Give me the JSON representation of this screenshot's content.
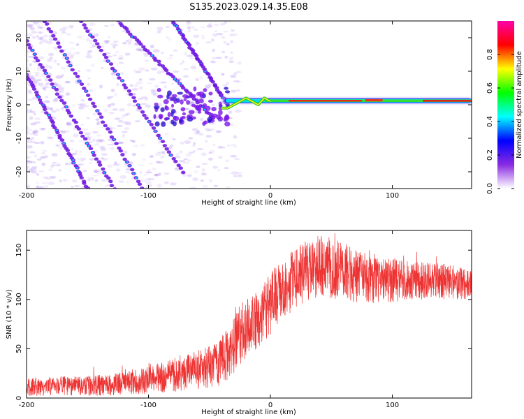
{
  "title": "S135.2023.029.14.35.E08",
  "chart_data": [
    {
      "type": "heatmap",
      "xlabel": "Height of straight line (km)",
      "ylabel": "Frequency (Hz)",
      "xlim": [
        -200,
        165
      ],
      "ylim": [
        -25,
        25
      ],
      "x_ticks": [
        "-200",
        "-100",
        "0",
        "100"
      ],
      "x_tick_values": [
        -200,
        -100,
        0,
        100
      ],
      "y_ticks": [
        "20",
        "10",
        "0",
        "-10",
        "-20"
      ],
      "y_tick_values": [
        20,
        10,
        0,
        -10,
        -20
      ],
      "colorbar": {
        "label": "Normalized spectral amplitude",
        "ticks": [
          "0.0",
          "0.2",
          "0.4",
          "0.6",
          "0.8"
        ],
        "tick_values": [
          0.0,
          0.2,
          0.4,
          0.6,
          0.8
        ],
        "range": [
          0,
          1
        ],
        "colormap": [
          "#ffffff",
          "#8a2be2",
          "#0000ff",
          "#00ffff",
          "#00ff00",
          "#ffff00",
          "#ff0000",
          "#ff00aa"
        ]
      },
      "features": {
        "diagonal_streaks": [
          {
            "x_start": -200,
            "f_start": 9,
            "x_end": -150,
            "f_end": -25
          },
          {
            "x_start": -200,
            "f_start": 19,
            "x_end": -128,
            "f_end": -25
          },
          {
            "x_start": -185,
            "f_start": 25,
            "x_end": -105,
            "f_end": -25
          },
          {
            "x_start": -155,
            "f_start": 25,
            "x_end": -72,
            "f_end": -20
          },
          {
            "x_start": -125,
            "f_start": 25,
            "x_end": -47,
            "f_end": -4
          },
          {
            "x_start": -80,
            "f_start": 25,
            "x_end": -35,
            "f_end": 0
          }
        ],
        "narrowband_line": {
          "x_start": -40,
          "x_end": 165,
          "frequency": 1.2,
          "peak_amplitude": 0.9
        }
      }
    },
    {
      "type": "line",
      "xlabel": "Height of straight line (km)",
      "ylabel": "SNR (10 * v/v)",
      "xlim": [
        -200,
        165
      ],
      "ylim": [
        0,
        170
      ],
      "x_ticks": [
        "-200",
        "-100",
        "0",
        "100"
      ],
      "x_tick_values": [
        -200,
        -100,
        0,
        100
      ],
      "y_ticks": [
        "0",
        "50",
        "100",
        "150"
      ],
      "y_tick_values": [
        0,
        50,
        100,
        150
      ],
      "line_color": "#ee3333",
      "series": [
        {
          "x": [
            -200,
            -180,
            -160,
            -140,
            -120,
            -100,
            -80,
            -60,
            -45,
            -35,
            -25,
            -15,
            -5,
            5,
            15,
            25,
            40,
            55,
            70,
            90,
            110,
            130,
            150,
            165
          ],
          "low": [
            2,
            2,
            2,
            2,
            3,
            4,
            6,
            8,
            10,
            18,
            30,
            45,
            58,
            70,
            85,
            95,
            98,
            100,
            97,
            96,
            98,
            100,
            100,
            100
          ],
          "high": [
            20,
            22,
            22,
            24,
            26,
            32,
            40,
            48,
            55,
            70,
            95,
            105,
            118,
            135,
            148,
            158,
            165,
            162,
            150,
            142,
            140,
            138,
            135,
            128
          ]
        }
      ]
    }
  ]
}
